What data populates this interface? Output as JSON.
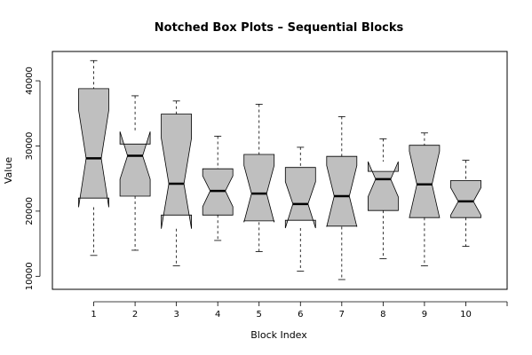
{
  "chart_data": {
    "type": "notched-boxplot",
    "title": "Notched Box Plots – Sequential Blocks",
    "xlabel": "Block Index",
    "ylabel": "Value",
    "categories": [
      "1",
      "2",
      "3",
      "4",
      "5",
      "6",
      "7",
      "8",
      "9",
      "10"
    ],
    "yticks": [
      10000,
      20000,
      30000,
      40000
    ],
    "ylim": [
      8000,
      44500
    ],
    "xlim": [
      0,
      11
    ],
    "grid": false,
    "box_fill": "#bfbfbf",
    "boxes": [
      {
        "category": "1",
        "min": 13200,
        "q1": 22000,
        "median": 28100,
        "q3": 38800,
        "max": 43100,
        "notch_low": 20600,
        "notch_high": 35500
      },
      {
        "category": "2",
        "min": 14000,
        "q1": 22300,
        "median": 28500,
        "q3": 30300,
        "max": 37700,
        "notch_low": 24900,
        "notch_high": 32200
      },
      {
        "category": "3",
        "min": 11600,
        "q1": 19400,
        "median": 24200,
        "q3": 34900,
        "max": 36900,
        "notch_low": 17300,
        "notch_high": 31200
      },
      {
        "category": "4",
        "min": 15500,
        "q1": 19400,
        "median": 23100,
        "q3": 26500,
        "max": 31500,
        "notch_low": 20700,
        "notch_high": 25400
      },
      {
        "category": "5",
        "min": 13800,
        "q1": 18500,
        "median": 22700,
        "q3": 28700,
        "max": 36400,
        "notch_low": 18300,
        "notch_high": 27000
      },
      {
        "category": "6",
        "min": 10800,
        "q1": 18600,
        "median": 21100,
        "q3": 26700,
        "max": 29800,
        "notch_low": 17400,
        "notch_high": 24500
      },
      {
        "category": "7",
        "min": 9500,
        "q1": 17700,
        "median": 22300,
        "q3": 28400,
        "max": 34500,
        "notch_low": 17600,
        "notch_high": 27000
      },
      {
        "category": "8",
        "min": 12700,
        "q1": 20100,
        "median": 24900,
        "q3": 26100,
        "max": 31100,
        "notch_low": 22200,
        "notch_high": 27600
      },
      {
        "category": "9",
        "min": 11600,
        "q1": 19000,
        "median": 24100,
        "q3": 30100,
        "max": 32000,
        "notch_low": 19000,
        "notch_high": 29200
      },
      {
        "category": "10",
        "min": 14600,
        "q1": 19000,
        "median": 21500,
        "q3": 24700,
        "max": 27800,
        "notch_low": 19400,
        "notch_high": 23600
      }
    ]
  }
}
